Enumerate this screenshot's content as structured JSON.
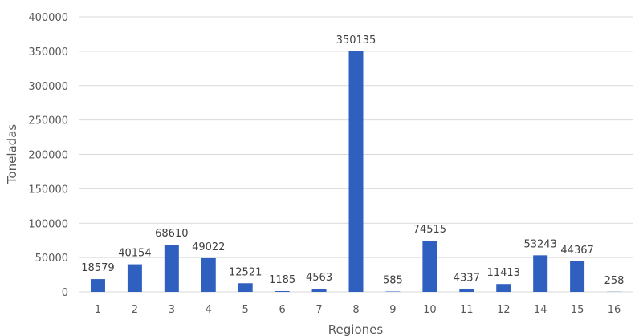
{
  "chart_data": {
    "type": "bar",
    "title": "",
    "xlabel": "Regiones",
    "ylabel": "Toneladas",
    "categories": [
      "1",
      "2",
      "3",
      "4",
      "5",
      "6",
      "7",
      "8",
      "9",
      "10",
      "11",
      "12",
      "14",
      "15",
      "16"
    ],
    "values": [
      18579,
      40154,
      68610,
      49022,
      12521,
      1185,
      4563,
      350135,
      585,
      74515,
      4337,
      11413,
      53243,
      44367,
      258
    ],
    "data_labels": [
      "18579",
      "40154",
      "68610",
      "49022",
      "12521",
      "1185",
      "4563",
      "350135",
      "585",
      "74515",
      "4337",
      "11413",
      "53243",
      "44367",
      "258"
    ],
    "ylim": [
      0,
      400000
    ],
    "yticks": [
      "0",
      "50000",
      "100000",
      "150000",
      "200000",
      "250000",
      "300000",
      "350000",
      "400000"
    ],
    "grid": true,
    "legend": "none",
    "bar_color": "#3060bf"
  }
}
